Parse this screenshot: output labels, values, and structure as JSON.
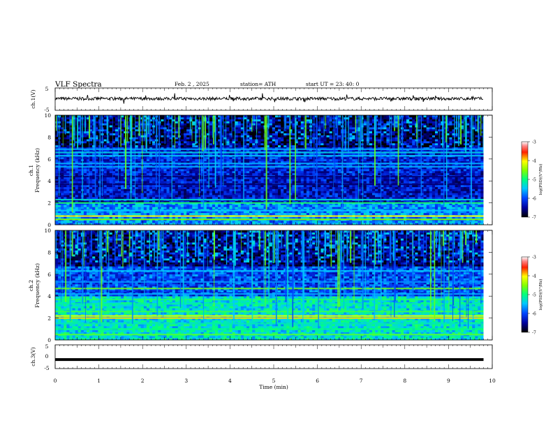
{
  "header": {
    "title": "VLF  Spectra",
    "date": "Feb. 2  , 2025",
    "station": "station= ATH",
    "start": "start  UT  =    23: 40: 0"
  },
  "chart_data": [
    {
      "type": "line",
      "name": "ch1-waveform",
      "ylabel": "ch.1(V)",
      "ylim": [
        -5,
        5
      ],
      "yticks": [
        "5",
        "-5"
      ],
      "xlim": [
        0,
        10
      ],
      "mean_value": 0.2,
      "color": "#000000"
    },
    {
      "type": "heatmap",
      "name": "ch1-spectrogram",
      "ylabel_top": "ch.1",
      "ylabel": "Frequency  (kHz)",
      "ylim": [
        0,
        10
      ],
      "yticks": [
        "0",
        "2",
        "4",
        "6",
        "8",
        "10"
      ],
      "xlim": [
        0,
        10
      ],
      "data_end_min": 9.8,
      "bands_kHz": [
        {
          "freq": 0.5,
          "level": -4.5
        },
        {
          "freq": 0.8,
          "level": -4.0
        },
        {
          "freq": 1.3,
          "level": -5.5
        },
        {
          "freq": 2.0,
          "level": -4.9
        },
        {
          "freq": 2.3,
          "level": -5.3
        },
        {
          "freq": 3.7,
          "level": -6.6
        },
        {
          "freq": 4.4,
          "level": -6.6
        },
        {
          "freq": 5.3,
          "level": -5.6
        },
        {
          "freq": 5.6,
          "level": -5.6
        },
        {
          "freq": 6.3,
          "level": -5.5
        },
        {
          "freq": 6.6,
          "level": -5.4
        },
        {
          "freq": 6.9,
          "level": -5.6
        }
      ],
      "colorbar": {
        "label": "log(PSD)(V²/Hz)",
        "ticks": [
          "-3",
          "-4",
          "-5",
          "-6",
          "-7"
        ],
        "range": [
          -7,
          -3
        ]
      }
    },
    {
      "type": "heatmap",
      "name": "ch2-spectrogram",
      "ylabel_top": "ch.2",
      "ylabel": "Frequency  (kHz)",
      "ylim": [
        0,
        10
      ],
      "yticks": [
        "0",
        "2",
        "4",
        "6",
        "8",
        "10"
      ],
      "xlim": [
        0,
        10
      ],
      "data_end_min": 9.8,
      "bands_kHz": [
        {
          "freq": 0.5,
          "level": -4.7
        },
        {
          "freq": 1.0,
          "level": -5.0
        },
        {
          "freq": 1.5,
          "level": -5.2
        },
        {
          "freq": 2.0,
          "level": -3.9
        },
        {
          "freq": 2.2,
          "level": -4.1
        },
        {
          "freq": 2.6,
          "level": -4.8
        },
        {
          "freq": 3.3,
          "level": -5.1
        },
        {
          "freq": 3.7,
          "level": -4.9
        },
        {
          "freq": 4.2,
          "level": -5.6
        },
        {
          "freq": 4.7,
          "level": -4.6
        },
        {
          "freq": 5.3,
          "level": -5.7
        },
        {
          "freq": 6.3,
          "level": -5.5
        }
      ],
      "colorbar": {
        "label": "log(PSD)(V²/Hz)",
        "ticks": [
          "-3",
          "-4",
          "-5",
          "-6",
          "-7"
        ],
        "range": [
          -7,
          -3
        ]
      }
    },
    {
      "type": "line",
      "name": "ch3-waveform",
      "ylabel": "ch.3(V)",
      "ylim": [
        -5,
        5
      ],
      "yticks": [
        "5",
        "0",
        "-5"
      ],
      "xlim": [
        0,
        10
      ],
      "mean_value": -1.2,
      "color": "#000000"
    }
  ],
  "xaxis": {
    "label": "Time  (min)",
    "ticks": [
      "0",
      "1",
      "2",
      "3",
      "4",
      "5",
      "6",
      "7",
      "8",
      "9",
      "10"
    ]
  }
}
